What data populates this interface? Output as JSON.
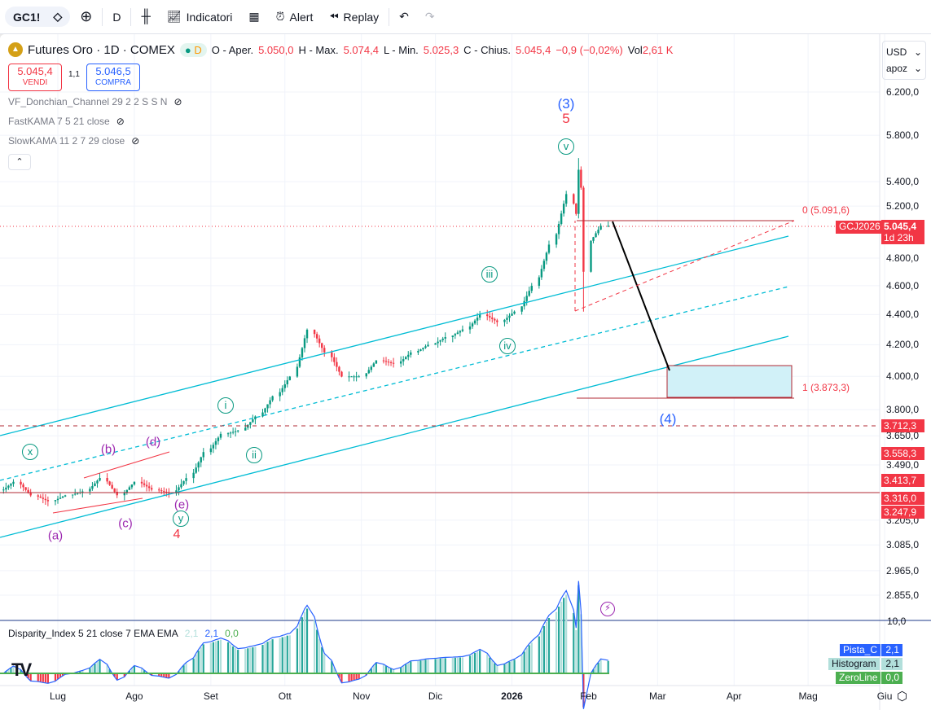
{
  "toolbar": {
    "symbol": "GC1!",
    "interval": "D",
    "indicators": "Indicatori",
    "alert": "Alert",
    "replay": "Replay"
  },
  "legend": {
    "title": "Futures Oro · 1D · COMEX",
    "badge": "D",
    "o_label": "O - Aper.",
    "o": "5.050,0",
    "h_label": "H - Max.",
    "h": "5.074,4",
    "l_label": "L - Min.",
    "l": "5.025,3",
    "c_label": "C - Chius.",
    "c": "5.045,4",
    "change": "−0,9 (−0,02%)",
    "vol_label": "Vol",
    "vol": "2,61 K"
  },
  "trade": {
    "sell_price": "5.045,4",
    "sell_label": "VENDI",
    "spread": "1,1",
    "buy_price": "5.046,5",
    "buy_label": "COMPRA"
  },
  "indicators": [
    "VF_Donchian_Channel 29 2 2 S S N",
    "FastKAMA 7 5 21 close",
    "SlowKAMA 11 2 7 29 close"
  ],
  "axis": {
    "currency": "USD",
    "mode": "apoz",
    "prices": [
      "6.200,0",
      "5.800,0",
      "5.400,0",
      "5.200,0",
      "4.800,0",
      "4.600,0",
      "4.400,0",
      "4.200,0",
      "4.000,0",
      "3.800,0",
      "3.650,0",
      "3.490,0",
      "3.205,0",
      "3.085,0",
      "2.965,0",
      "2.855,0"
    ],
    "indicator_top": "10,0"
  },
  "price_tags": {
    "contract": "GCJ2026",
    "last": "5.045,4",
    "countdown": "1d 23h",
    "levels": [
      "3.712,3",
      "3.558,3",
      "3.413,7",
      "3.316,0",
      "3.247,9"
    ]
  },
  "fib": {
    "level0": "0 (5.091,6)",
    "level1": "1 (3.873,3)"
  },
  "waves": {
    "w3": "(3)",
    "w5": "5",
    "v": "v",
    "iii": "iii",
    "iv": "iv",
    "i": "i",
    "ii": "ii",
    "x": "x",
    "y": "y",
    "w4": "4",
    "wa": "(a)",
    "wb": "(b)",
    "wc": "(c)",
    "wd": "(d)",
    "we": "(e)",
    "target": "(4)"
  },
  "time_axis": [
    "Lug",
    "Ago",
    "Set",
    "Ott",
    "Nov",
    "Dic",
    "2026",
    "Feb",
    "Mar",
    "Apr",
    "Mag",
    "Giu"
  ],
  "oscillator": {
    "title": "Disparity_Index 5 21 close 7 EMA EMA",
    "v1": "2,1",
    "v2": "2,1",
    "v3": "0,0",
    "tags": [
      {
        "name": "Pista_C",
        "value": "2,1"
      },
      {
        "name": "Histogram",
        "value": "2,1"
      },
      {
        "name": "ZeroLine",
        "value": "0,0"
      }
    ]
  },
  "colors": {
    "up": "#089981",
    "down": "#f23645",
    "channel": "#00bcd4",
    "accent": "#2962ff"
  },
  "chart_data": {
    "type": "candlestick",
    "scale": "log",
    "ylim": [
      2800,
      6400
    ],
    "weekly_close": [
      [
        "2025-06-09",
        3350
      ],
      [
        "2025-06-16",
        3400
      ],
      [
        "2025-06-23",
        3330
      ],
      [
        "2025-06-30",
        3300
      ],
      [
        "2025-07-07",
        3330
      ],
      [
        "2025-07-14",
        3350
      ],
      [
        "2025-07-21",
        3420
      ],
      [
        "2025-07-28",
        3330
      ],
      [
        "2025-08-04",
        3400
      ],
      [
        "2025-08-11",
        3360
      ],
      [
        "2025-08-18",
        3340
      ],
      [
        "2025-08-25",
        3420
      ],
      [
        "2025-09-01",
        3560
      ],
      [
        "2025-09-08",
        3660
      ],
      [
        "2025-09-15",
        3680
      ],
      [
        "2025-09-22",
        3760
      ],
      [
        "2025-09-29",
        3880
      ],
      [
        "2025-10-06",
        4000
      ],
      [
        "2025-10-13",
        4300
      ],
      [
        "2025-10-20",
        4150
      ],
      [
        "2025-10-27",
        4000
      ],
      [
        "2025-11-03",
        4000
      ],
      [
        "2025-11-10",
        4100
      ],
      [
        "2025-11-17",
        4080
      ],
      [
        "2025-11-24",
        4150
      ],
      [
        "2025-12-01",
        4200
      ],
      [
        "2025-12-08",
        4250
      ],
      [
        "2025-12-15",
        4300
      ],
      [
        "2025-12-22",
        4400
      ],
      [
        "2025-12-29",
        4350
      ],
      [
        "2026-01-05",
        4420
      ],
      [
        "2026-01-12",
        4600
      ],
      [
        "2026-01-19",
        4900
      ],
      [
        "2026-01-26",
        5300
      ],
      [
        "2026-02-02",
        4900
      ],
      [
        "2026-02-09",
        5045
      ]
    ]
  }
}
